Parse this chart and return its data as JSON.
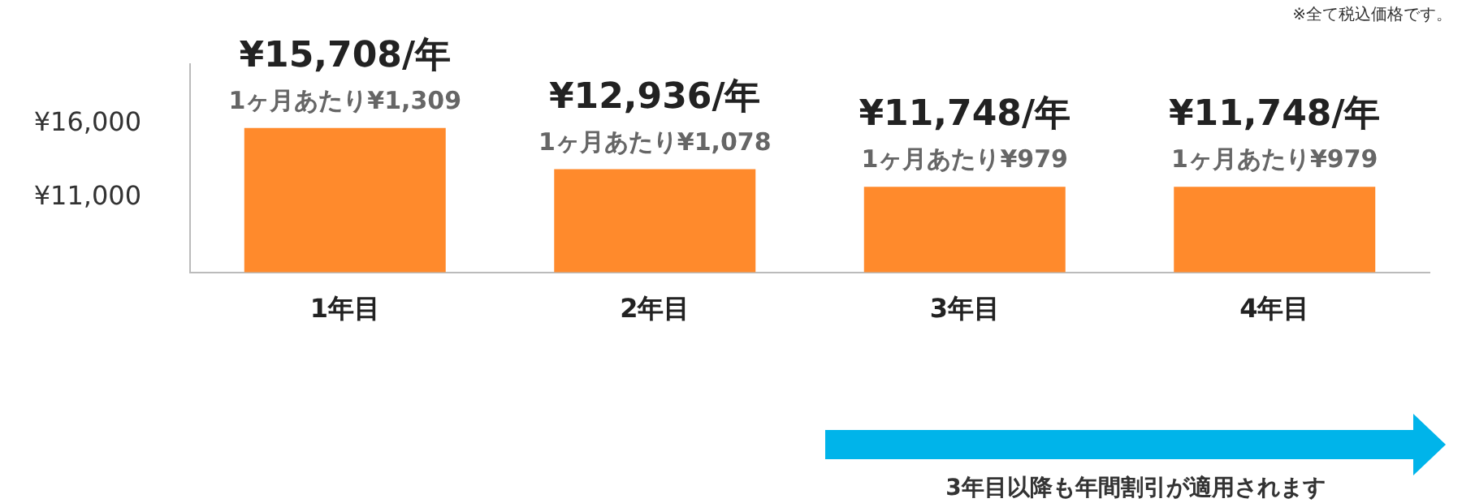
{
  "chart_data": {
    "type": "bar",
    "categories": [
      "1年目",
      "2年目",
      "3年目",
      "4年目"
    ],
    "values": [
      15708,
      12936,
      11748,
      11748
    ],
    "color": "#ff8a2c",
    "value_labels": [
      "¥15,708/年",
      "¥12,936/年",
      "¥11,748/年",
      "¥11,748/年"
    ],
    "ylim": [
      6000,
      20000
    ],
    "yticks": [
      {
        "value": 16000,
        "label": "¥16,000"
      },
      {
        "value": 11000,
        "label": "¥11,000"
      }
    ],
    "grid": false,
    "legend": false,
    "annotations": [
      "※全て税込価格です。",
      "3年目以降も年間割引が適用されます",
      {
        "text": "1ヶ月あたり¥1,309",
        "x": "1年目",
        "y": 15708
      },
      {
        "text": "1ヶ月あたり¥1,078",
        "x": "2年目",
        "y": 12936
      },
      {
        "text": "1ヶ月あたり¥979",
        "x": "3年目",
        "y": 11748
      },
      {
        "text": "1ヶ月あたり¥979",
        "x": "4年目",
        "y": 11748
      }
    ]
  }
}
